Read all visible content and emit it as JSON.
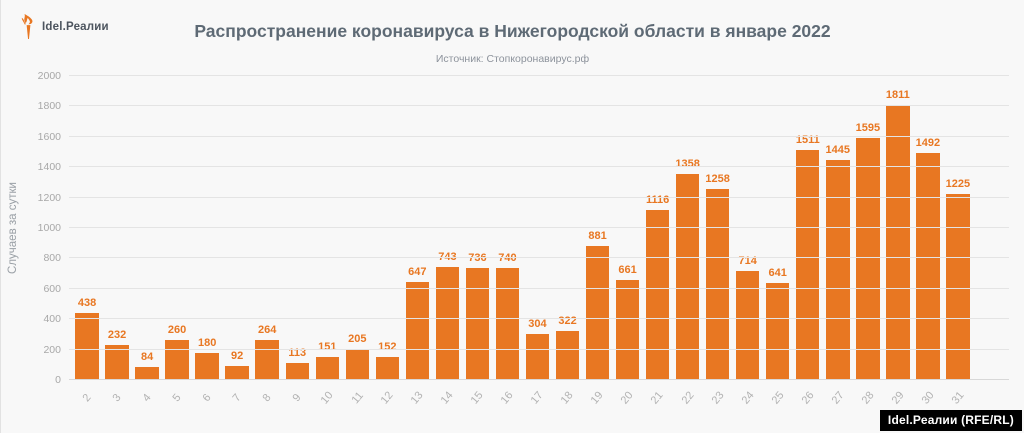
{
  "brand": {
    "logo_text": "Idel.Реалии",
    "torch_color": "#E87722"
  },
  "header": {
    "title": "Распространение коронавируса в Нижегородской области в январе 2022",
    "subtitle": "Источник: Стопкоронавирус.рф"
  },
  "footer_badge": {
    "text": "Idel.Реалии (RFE/RL)"
  },
  "chart_data": {
    "type": "bar",
    "title": "Распространение коронавируса в Нижегородской области в январе 2022",
    "subtitle": "Источник: Стопкоронавирус.рф",
    "xlabel": "",
    "ylabel": "Случаев за сутки",
    "categories": [
      "2",
      "3",
      "4",
      "5",
      "6",
      "7",
      "8",
      "9",
      "10",
      "11",
      "12",
      "13",
      "14",
      "15",
      "16",
      "17",
      "18",
      "19",
      "20",
      "21",
      "22",
      "23",
      "24",
      "25",
      "26",
      "27",
      "28",
      "29",
      "30",
      "31"
    ],
    "values": [
      438,
      232,
      84,
      260,
      180,
      92,
      264,
      113,
      151,
      205,
      152,
      647,
      743,
      736,
      740,
      304,
      322,
      881,
      661,
      1116,
      1358,
      1258,
      714,
      641,
      1511,
      1445,
      1595,
      1811,
      1492,
      1225
    ],
    "ylim": [
      0,
      2000
    ],
    "ytick_step": 200,
    "grid": true,
    "legend": false,
    "value_labels": true,
    "bar_color": "#E87722",
    "value_label_color": "#E87722"
  }
}
